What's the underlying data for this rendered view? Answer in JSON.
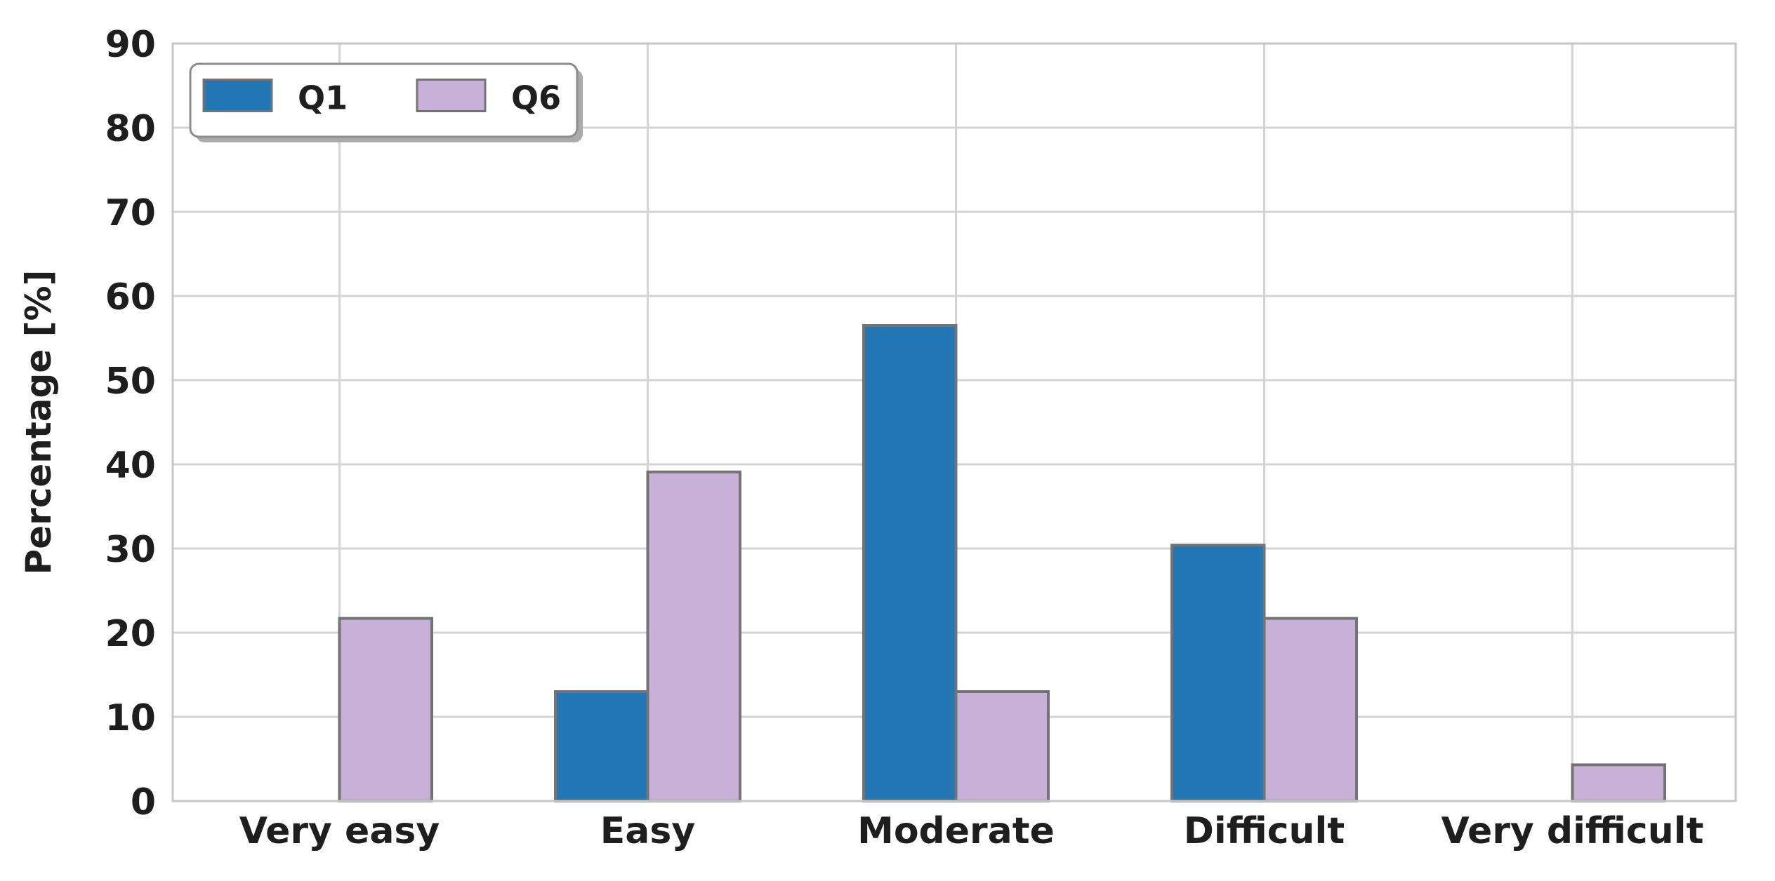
{
  "chart_data": {
    "type": "bar",
    "categories": [
      "Very easy",
      "Easy",
      "Moderate",
      "Difficult",
      "Very difficult"
    ],
    "series": [
      {
        "name": "Q1",
        "color": "#2277b4",
        "values": [
          0,
          13.0,
          56.5,
          30.4,
          0
        ]
      },
      {
        "name": "Q6",
        "color": "#c8b1d8",
        "values": [
          21.7,
          39.1,
          13.0,
          21.7,
          4.3
        ]
      }
    ],
    "title": "",
    "xlabel": "",
    "ylabel": "Percentage [%]",
    "ylim": [
      0,
      90
    ],
    "yticks": [
      0,
      10,
      20,
      30,
      40,
      50,
      60,
      70,
      80,
      90
    ],
    "grid": true,
    "legend": {
      "position": "upper left",
      "entries": [
        "Q1",
        "Q6"
      ]
    },
    "colors": {
      "bar_edge": "#737373",
      "grid_line": "#d4d4d4",
      "spine": "#c6c6c6",
      "tick_text": "#1e1e1e",
      "legend_border": "#8c8c8c",
      "legend_shadow": "#ababab",
      "legend_background": "#ffffff",
      "plot_background": "#ffffff"
    }
  }
}
